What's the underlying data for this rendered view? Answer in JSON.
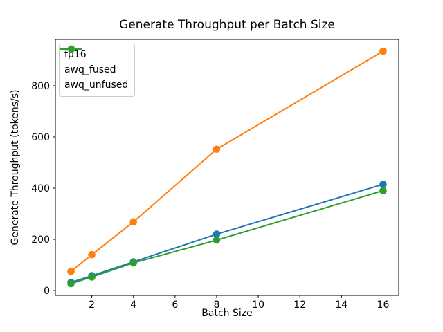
{
  "chart_data": {
    "type": "line",
    "title": "Generate Throughput per Batch Size",
    "xlabel": "Batch Size",
    "ylabel": "Generate Throughput (tokens/s)",
    "x": [
      1,
      2,
      4,
      8,
      16
    ],
    "series": [
      {
        "name": "fp16",
        "color": "#1f77b4",
        "values": [
          32,
          58,
          112,
          220,
          415
        ]
      },
      {
        "name": "awq_fused",
        "color": "#ff7f0e",
        "values": [
          75,
          140,
          268,
          552,
          935
        ]
      },
      {
        "name": "awq_unfused",
        "color": "#2ca02c",
        "values": [
          27,
          53,
          108,
          197,
          390
        ]
      }
    ],
    "xticks": [
      2,
      4,
      6,
      8,
      10,
      12,
      14,
      16
    ],
    "yticks": [
      0,
      200,
      400,
      600,
      800
    ],
    "xlim": [
      0.25,
      16.75
    ],
    "ylim": [
      -18.9,
      981
    ],
    "legend_position": "upper-left",
    "grid": false,
    "marker": "circle",
    "axis_color": "#000000",
    "background_color": "#ffffff"
  }
}
